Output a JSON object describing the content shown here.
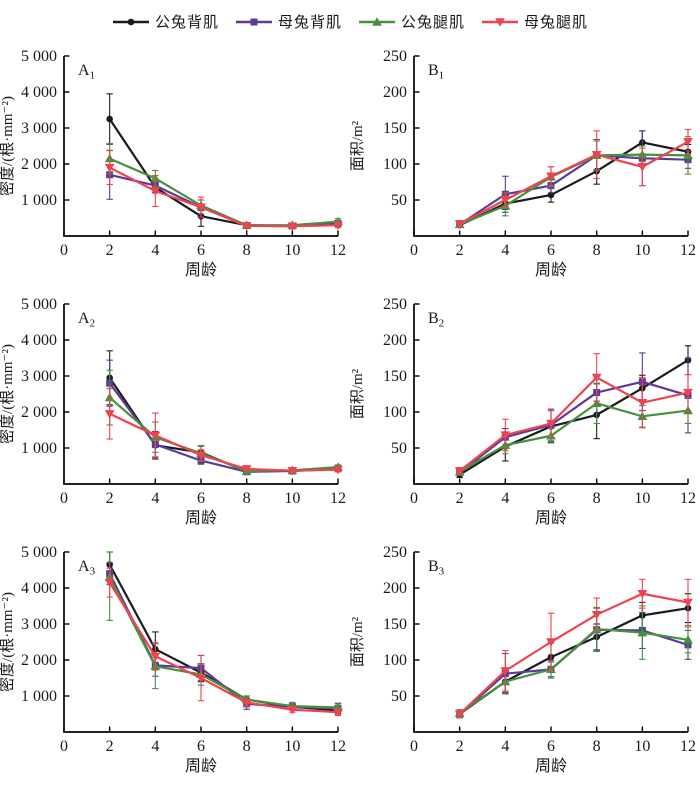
{
  "legend": {
    "items": [
      {
        "label": "公兔背肌",
        "color": "#1b1b1b",
        "marker": "circle"
      },
      {
        "label": "母兔背肌",
        "color": "#5c3a96",
        "marker": "square"
      },
      {
        "label": "公兔腿肌",
        "color": "#45913d",
        "marker": "triangle-up"
      },
      {
        "label": "母兔腿肌",
        "color": "#ee4350",
        "marker": "triangle-down"
      }
    ]
  },
  "chart_data": [
    {
      "id": "A1",
      "type": "line",
      "title_main": "A",
      "title_sub": "1",
      "xlabel": "周龄",
      "ylabel": "密度/(根·mm⁻²)",
      "xlim": [
        0,
        12
      ],
      "ylim": [
        0,
        5000
      ],
      "xticks": [
        0,
        2,
        4,
        6,
        8,
        10,
        12
      ],
      "xtick_labels": [
        "0",
        "2",
        "4",
        "6",
        "8",
        "10",
        "12"
      ],
      "yticks": [
        1000,
        2000,
        3000,
        4000,
        5000
      ],
      "ytick_labels": [
        "1 000",
        "2 000",
        "3 000",
        "4 000",
        "5 000"
      ],
      "x": [
        2,
        4,
        6,
        8,
        10,
        12
      ],
      "grid": false,
      "legend_position": "top",
      "series": [
        {
          "name": "公兔背肌",
          "values": [
            3250,
            1350,
            550,
            300,
            280,
            330
          ],
          "errors": [
            700,
            150,
            280,
            60,
            50,
            60
          ]
        },
        {
          "name": "母兔背肌",
          "values": [
            1700,
            1400,
            800,
            290,
            280,
            350
          ],
          "errors": [
            680,
            150,
            200,
            50,
            40,
            60
          ]
        },
        {
          "name": "公兔腿肌",
          "values": [
            2150,
            1600,
            850,
            300,
            300,
            400
          ],
          "errors": [
            420,
            220,
            150,
            60,
            50,
            80
          ]
        },
        {
          "name": "母兔腿肌",
          "values": [
            1900,
            1250,
            800,
            280,
            270,
            300
          ],
          "errors": [
            470,
            430,
            280,
            60,
            50,
            70
          ]
        }
      ]
    },
    {
      "id": "B1",
      "type": "line",
      "title_main": "B",
      "title_sub": "1",
      "xlabel": "周龄",
      "ylabel": "面积/m²",
      "xlim": [
        0,
        12
      ],
      "ylim": [
        0,
        250
      ],
      "xticks": [
        0,
        2,
        4,
        6,
        8,
        10,
        12
      ],
      "xtick_labels": [
        "0",
        "2",
        "4",
        "6",
        "8",
        "10",
        "12"
      ],
      "yticks": [
        50,
        100,
        150,
        200,
        250
      ],
      "ytick_labels": [
        "50",
        "100",
        "150",
        "200",
        "250"
      ],
      "x": [
        2,
        4,
        6,
        8,
        10,
        12
      ],
      "grid": false,
      "legend_position": "top",
      "series": [
        {
          "name": "公兔背肌",
          "values": [
            15,
            45,
            57,
            90,
            130,
            117
          ],
          "errors": [
            3,
            8,
            10,
            18,
            16,
            10
          ]
        },
        {
          "name": "母兔背肌",
          "values": [
            16,
            58,
            70,
            112,
            108,
            106
          ],
          "errors": [
            3,
            25,
            10,
            22,
            38,
            12
          ]
        },
        {
          "name": "公兔腿肌",
          "values": [
            16,
            42,
            82,
            112,
            113,
            112
          ],
          "errors": [
            3,
            14,
            14,
            20,
            12,
            26
          ]
        },
        {
          "name": "母兔腿肌",
          "values": [
            17,
            50,
            83,
            113,
            96,
            131
          ],
          "errors": [
            4,
            10,
            13,
            33,
            26,
            17
          ]
        }
      ]
    },
    {
      "id": "A2",
      "type": "line",
      "title_main": "A",
      "title_sub": "2",
      "xlabel": "周龄",
      "ylabel": "密度/(根·mm⁻²)",
      "xlim": [
        0,
        12
      ],
      "ylim": [
        0,
        5000
      ],
      "xticks": [
        0,
        2,
        4,
        6,
        8,
        10,
        12
      ],
      "xtick_labels": [
        "0",
        "2",
        "4",
        "6",
        "8",
        "10",
        "12"
      ],
      "yticks": [
        1000,
        2000,
        3000,
        4000,
        5000
      ],
      "ytick_labels": [
        "1 000",
        "2 000",
        "3 000",
        "4 000",
        "5 000"
      ],
      "x": [
        2,
        4,
        6,
        8,
        10,
        12
      ],
      "grid": false,
      "legend_position": "top",
      "series": [
        {
          "name": "公兔背肌",
          "values": [
            2950,
            1075,
            875,
            350,
            370,
            430
          ],
          "errors": [
            750,
            380,
            180,
            60,
            50,
            60
          ]
        },
        {
          "name": "母兔背肌",
          "values": [
            2800,
            1100,
            650,
            340,
            360,
            420
          ],
          "errors": [
            640,
            350,
            100,
            50,
            40,
            50
          ]
        },
        {
          "name": "公兔腿肌",
          "values": [
            2400,
            1300,
            850,
            360,
            380,
            470
          ],
          "errors": [
            760,
            420,
            220,
            60,
            50,
            60
          ]
        },
        {
          "name": "母兔腿肌",
          "values": [
            1950,
            1350,
            800,
            420,
            370,
            400
          ],
          "errors": [
            700,
            620,
            150,
            60,
            50,
            60
          ]
        }
      ]
    },
    {
      "id": "B2",
      "type": "line",
      "title_main": "B",
      "title_sub": "2",
      "xlabel": "周龄",
      "ylabel": "面积/m²",
      "xlim": [
        0,
        12
      ],
      "ylim": [
        0,
        250
      ],
      "xticks": [
        0,
        2,
        4,
        6,
        8,
        10,
        12
      ],
      "xtick_labels": [
        "0",
        "2",
        "4",
        "6",
        "8",
        "10",
        "12"
      ],
      "yticks": [
        50,
        100,
        150,
        200,
        250
      ],
      "ytick_labels": [
        "50",
        "100",
        "150",
        "200",
        "250"
      ],
      "x": [
        2,
        4,
        6,
        8,
        10,
        12
      ],
      "grid": false,
      "legend_position": "top",
      "series": [
        {
          "name": "公兔背肌",
          "values": [
            13,
            52,
            80,
            96,
            133,
            172
          ],
          "errors": [
            4,
            20,
            22,
            33,
            18,
            20
          ]
        },
        {
          "name": "母兔背肌",
          "values": [
            16,
            65,
            82,
            127,
            142,
            123
          ],
          "errors": [
            4,
            12,
            22,
            12,
            40,
            52
          ]
        },
        {
          "name": "公兔腿肌",
          "values": [
            17,
            54,
            67,
            112,
            94,
            102
          ],
          "errors": [
            4,
            12,
            10,
            28,
            15,
            18
          ]
        },
        {
          "name": "母兔腿肌",
          "values": [
            18,
            68,
            84,
            148,
            113,
            127
          ],
          "errors": [
            5,
            22,
            18,
            33,
            35,
            25
          ]
        }
      ]
    },
    {
      "id": "A3",
      "type": "line",
      "title_main": "A",
      "title_sub": "3",
      "xlabel": "周龄",
      "ylabel": "密度/(根·mm⁻²)",
      "xlim": [
        0,
        12
      ],
      "ylim": [
        0,
        5000
      ],
      "xticks": [
        0,
        2,
        4,
        6,
        8,
        10,
        12
      ],
      "xtick_labels": [
        "0",
        "2",
        "4",
        "6",
        "8",
        "10",
        "12"
      ],
      "yticks": [
        1000,
        2000,
        3000,
        4000,
        5000
      ],
      "ytick_labels": [
        "1 000",
        "2 000",
        "3 000",
        "4 000",
        "5 000"
      ],
      "x": [
        2,
        4,
        6,
        8,
        10,
        12
      ],
      "grid": false,
      "legend_position": "top",
      "series": [
        {
          "name": "公兔背肌",
          "values": [
            4650,
            2300,
            1650,
            900,
            700,
            600
          ],
          "errors": [
            350,
            480,
            250,
            100,
            80,
            80
          ]
        },
        {
          "name": "母兔背肌",
          "values": [
            4400,
            1850,
            1775,
            780,
            700,
            650
          ],
          "errors": [
            300,
            300,
            350,
            150,
            80,
            150
          ]
        },
        {
          "name": "公兔腿肌",
          "values": [
            4300,
            1825,
            1600,
            900,
            720,
            680
          ],
          "errors": [
            1200,
            620,
            300,
            100,
            100,
            100
          ]
        },
        {
          "name": "母兔腿肌",
          "values": [
            4150,
            2100,
            1500,
            820,
            620,
            550
          ],
          "errors": [
            400,
            380,
            630,
            100,
            70,
            90
          ]
        }
      ]
    },
    {
      "id": "B3",
      "type": "line",
      "title_main": "B",
      "title_sub": "3",
      "xlabel": "周龄",
      "ylabel": "面积/m²",
      "xlim": [
        0,
        12
      ],
      "ylim": [
        0,
        250
      ],
      "xticks": [
        0,
        2,
        4,
        6,
        8,
        10,
        12
      ],
      "xtick_labels": [
        "0",
        "2",
        "4",
        "6",
        "8",
        "10",
        "12"
      ],
      "yticks": [
        50,
        100,
        150,
        200,
        250
      ],
      "ytick_labels": [
        "50",
        "100",
        "150",
        "200",
        "250"
      ],
      "x": [
        2,
        4,
        6,
        8,
        10,
        12
      ],
      "grid": false,
      "legend_position": "top",
      "series": [
        {
          "name": "公兔背肌",
          "values": [
            25,
            70,
            104,
            132,
            162,
            172
          ],
          "errors": [
            4,
            15,
            20,
            18,
            18,
            20
          ]
        },
        {
          "name": "母兔背肌",
          "values": [
            24,
            81,
            87,
            142,
            141,
            121
          ],
          "errors": [
            4,
            28,
            12,
            30,
            25,
            20
          ]
        },
        {
          "name": "公兔腿肌",
          "values": [
            26,
            70,
            87,
            143,
            138,
            128
          ],
          "errors": [
            5,
            16,
            10,
            30,
            37,
            18
          ]
        },
        {
          "name": "母兔腿肌",
          "values": [
            25,
            85,
            125,
            163,
            192,
            180
          ],
          "errors": [
            5,
            28,
            40,
            23,
            20,
            32
          ]
        }
      ]
    }
  ]
}
